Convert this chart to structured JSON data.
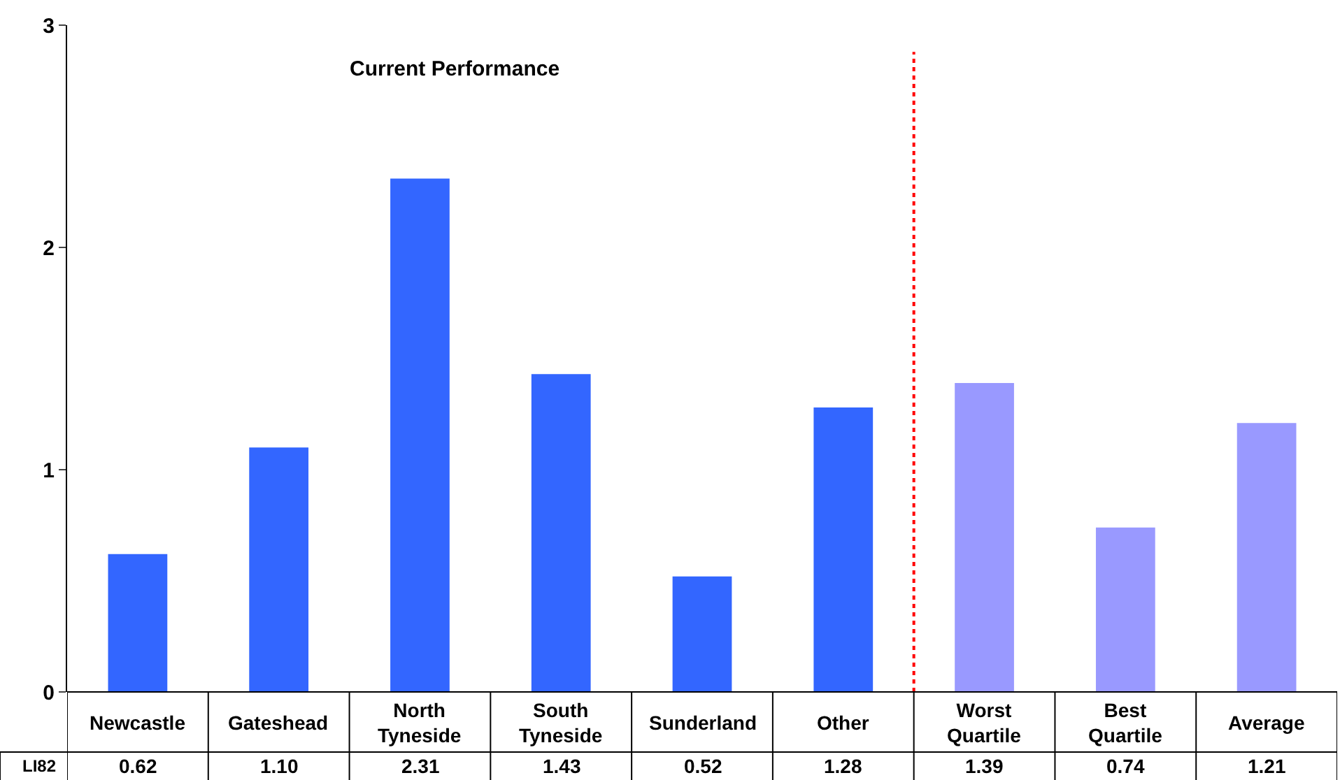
{
  "chart_data": {
    "type": "bar",
    "title": "Current Performance",
    "categories": [
      "Newcastle",
      "Gateshead",
      "North Tyneside",
      "South Tyneside",
      "Sunderland",
      "Other",
      "Worst Quartile",
      "Best Quartile",
      "Average"
    ],
    "series": [
      {
        "name": "LI82",
        "values": [
          0.62,
          1.1,
          2.31,
          1.43,
          0.52,
          1.28,
          1.39,
          0.74,
          1.21
        ],
        "colors": [
          "#3366ff",
          "#3366ff",
          "#3366ff",
          "#3366ff",
          "#3366ff",
          "#3366ff",
          "#9999ff",
          "#9999ff",
          "#9999ff"
        ],
        "value_labels": [
          "0.62",
          "1.10",
          "2.31",
          "1.43",
          "0.52",
          "1.28",
          "1.39",
          "0.74",
          "1.21"
        ]
      }
    ],
    "ylim": [
      0,
      3
    ],
    "yticks": [
      0,
      1,
      2,
      3
    ],
    "grid": false,
    "legend": false,
    "ref_lines": [
      {
        "axis": "x",
        "value": "Worst Quartile",
        "color": "#ff0000",
        "line_style": "dotted"
      }
    ]
  }
}
